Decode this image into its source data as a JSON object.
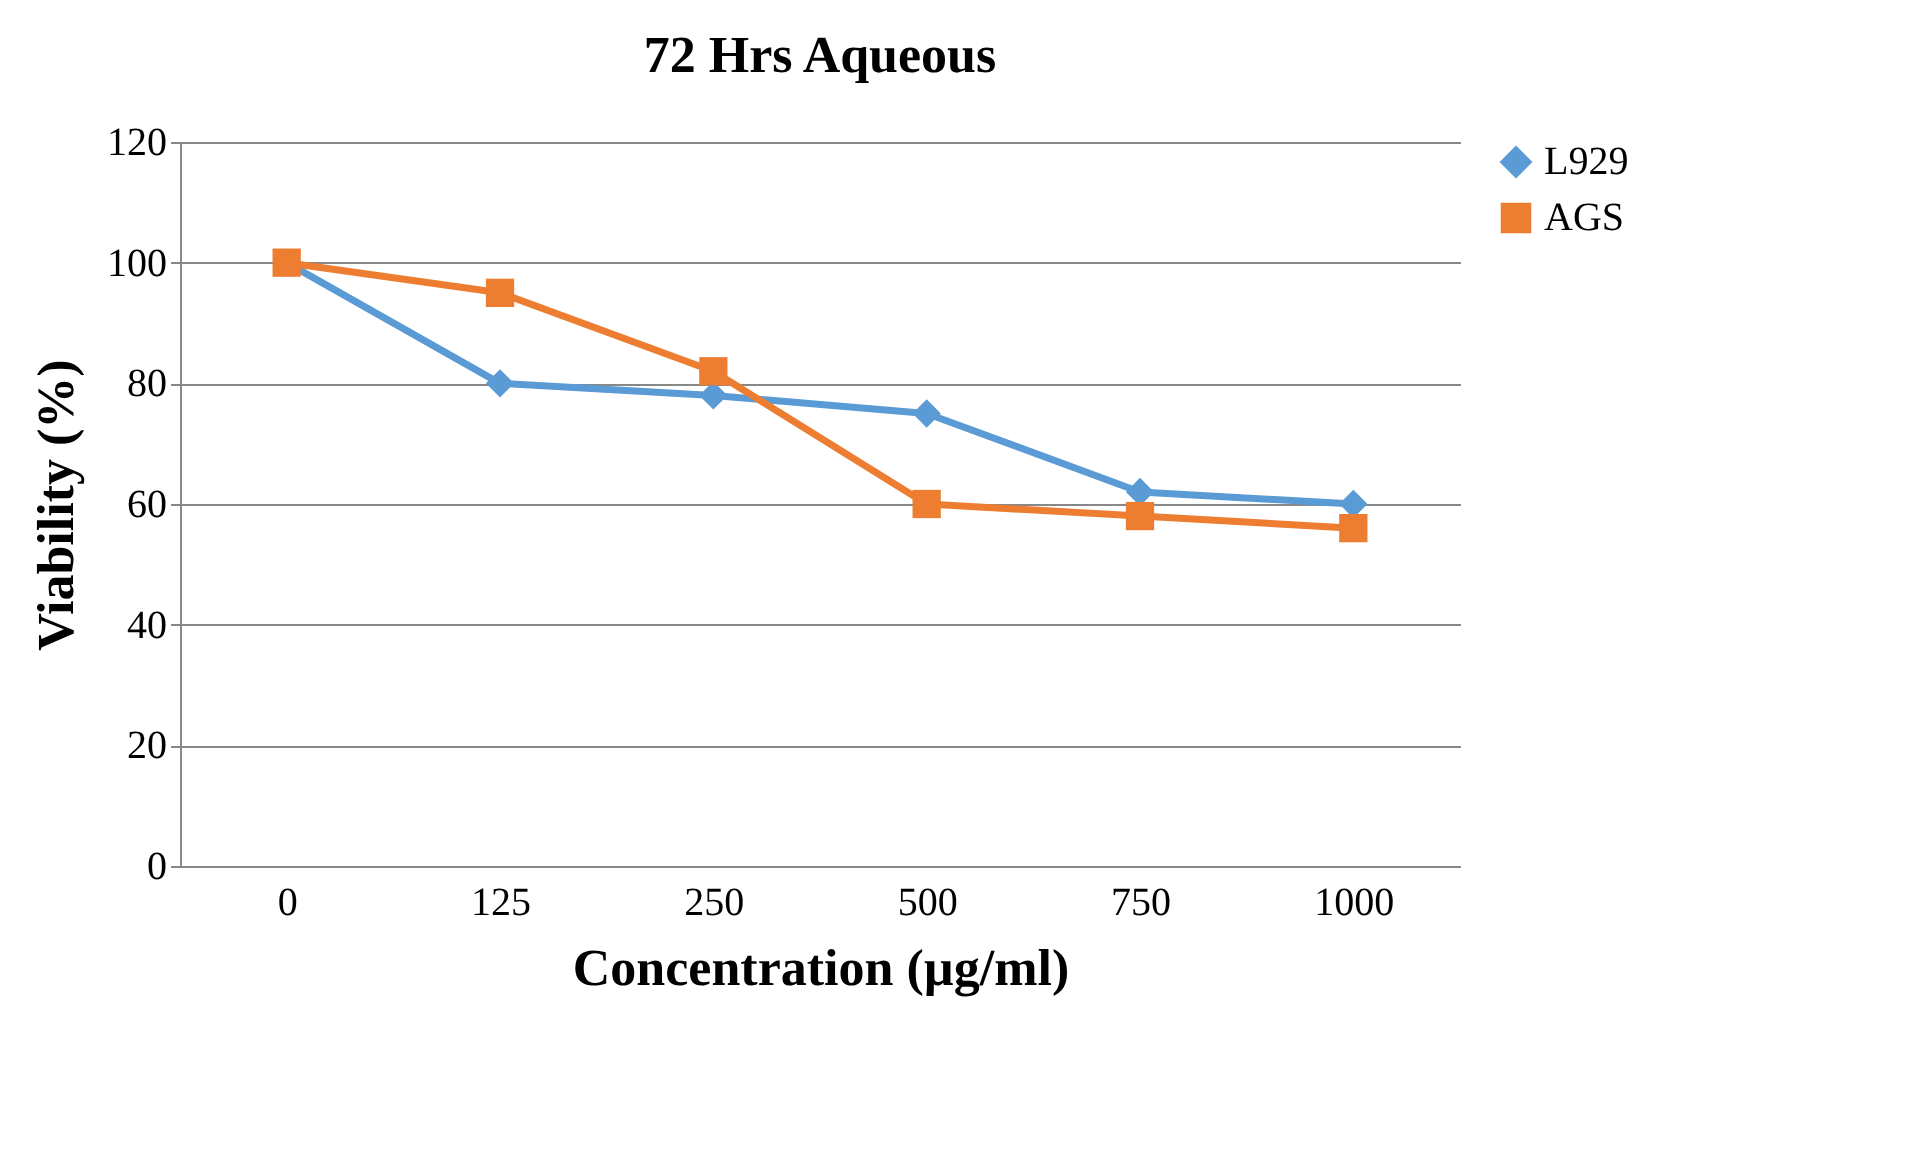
{
  "chart_data": {
    "type": "line",
    "title": "72 Hrs Aqueous",
    "xlabel": "Concentration (µg/ml)",
    "ylabel": "Viability (%)",
    "categories": [
      "0",
      "125",
      "250",
      "500",
      "750",
      "1000"
    ],
    "series": [
      {
        "name": "L929",
        "color": "#5b9bd5",
        "marker": "diamond",
        "values": [
          100,
          80,
          78,
          75,
          62,
          60
        ]
      },
      {
        "name": "AGS",
        "color": "#ed7d31",
        "marker": "square",
        "values": [
          100,
          95,
          82,
          60,
          58,
          56
        ]
      }
    ],
    "ylim": [
      0,
      120
    ],
    "yticks": [
      0,
      20,
      40,
      60,
      80,
      100,
      120
    ],
    "grid": "y",
    "legend": "right"
  }
}
